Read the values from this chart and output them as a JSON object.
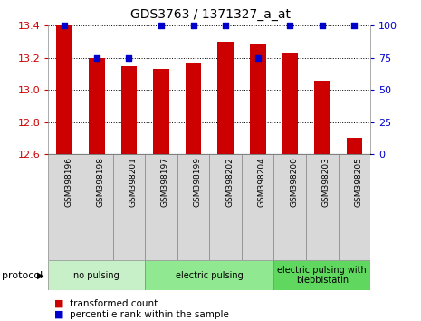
{
  "title": "GDS3763 / 1371327_a_at",
  "categories": [
    "GSM398196",
    "GSM398198",
    "GSM398201",
    "GSM398197",
    "GSM398199",
    "GSM398202",
    "GSM398204",
    "GSM398200",
    "GSM398203",
    "GSM398205"
  ],
  "bar_values": [
    13.4,
    13.2,
    13.15,
    13.13,
    13.17,
    13.3,
    13.29,
    13.23,
    13.06,
    12.7
  ],
  "percentile_values": [
    100,
    75,
    75,
    100,
    100,
    100,
    75,
    100,
    100,
    100
  ],
  "bar_color": "#cc0000",
  "percentile_color": "#0000cc",
  "ylim_left": [
    12.6,
    13.4
  ],
  "ylim_right": [
    0,
    100
  ],
  "yticks_left": [
    12.6,
    12.8,
    13.0,
    13.2,
    13.4
  ],
  "yticks_right": [
    0,
    25,
    50,
    75,
    100
  ],
  "groups": [
    {
      "label": "no pulsing",
      "start": 0,
      "end": 3,
      "color": "#c8f0c8"
    },
    {
      "label": "electric pulsing",
      "start": 3,
      "end": 7,
      "color": "#90e890"
    },
    {
      "label": "electric pulsing with\nblebbistatin",
      "start": 7,
      "end": 10,
      "color": "#60d860"
    }
  ],
  "legend_bar_label": "transformed count",
  "legend_pct_label": "percentile rank within the sample",
  "protocol_label": "protocol",
  "bar_width": 0.5,
  "grid_linestyle": "dotted",
  "tick_color_left": "#cc0000",
  "tick_color_right": "#0000cc",
  "xlabel_color": "#000000",
  "bg_color": "#ffffff",
  "xlabel_bg": "#d8d8d8",
  "title_fontsize": 10,
  "axis_fontsize": 8,
  "label_fontsize": 7,
  "legend_fontsize": 8
}
